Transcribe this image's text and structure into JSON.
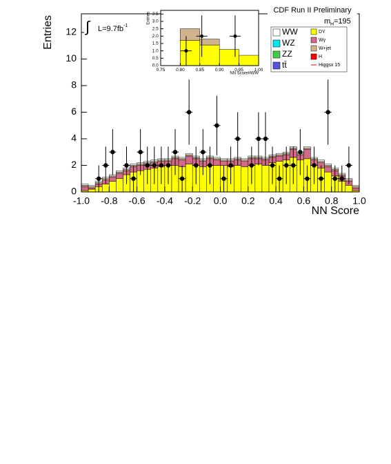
{
  "chart_data": [
    {
      "type": "histogram",
      "title": "CDF Run II Preliminary",
      "xlabel": "NN Score",
      "ylabel": "Entries",
      "integral": "∫",
      "luminosity": "L=9.7fb",
      "luminosity_sup": "-1",
      "mass": "m",
      "mass_sub": "H",
      "mass_value": "=195",
      "bins": [
        -1,
        -0.95,
        -0.9,
        -0.85,
        -0.8,
        -0.75,
        -0.7,
        -0.65,
        -0.6,
        -0.55,
        -0.5,
        -0.45,
        -0.4,
        -0.35,
        -0.3,
        -0.25,
        -0.2,
        -0.15,
        -0.1,
        -0.05,
        0,
        0.05,
        0.1,
        0.15,
        0.2,
        0.25,
        0.3,
        0.35,
        0.4,
        0.45,
        0.5,
        0.55,
        0.6,
        0.65,
        0.7,
        0.75,
        0.8,
        0.85,
        0.9,
        0.95,
        1
      ],
      "xlim": [
        -1,
        1
      ],
      "ylim": [
        0,
        13.4
      ],
      "xticks": [
        {
          "value": -1,
          "label": "-1.0"
        },
        -0.8,
        -0.6,
        -0.4,
        -0.2,
        {
          "value": 0,
          "label": "0.0"
        },
        0.2,
        0.4,
        0.6,
        0.8,
        {
          "value": 1,
          "label": "1.0"
        }
      ],
      "yticks": [
        0,
        2,
        4,
        6,
        8,
        10,
        12
      ],
      "series": [
        {
          "name": "WW",
          "color": "#ffffff",
          "values": [
            0.1,
            0.1,
            0.1,
            0.1,
            0.1,
            0.1,
            0.1,
            0.1,
            0.1,
            0.1,
            0.1,
            0.1,
            0.1,
            0.1,
            0.1,
            0.1,
            0.1,
            0.1,
            0.1,
            0.1,
            0.1,
            0.1,
            0.1,
            0.1,
            0.1,
            0.1,
            0.1,
            0.1,
            0.1,
            0.1,
            0.1,
            0.1,
            0.1,
            0.1,
            0.1,
            0.1,
            0.1,
            0.1,
            0.1,
            0.1
          ]
        },
        {
          "name": "WZ",
          "color": "#00e5ee",
          "values": [
            0,
            0,
            0,
            0,
            0,
            0,
            0,
            0,
            0,
            0,
            0,
            0,
            0,
            0,
            0,
            0,
            0,
            0,
            0,
            0,
            0,
            0,
            0,
            0,
            0,
            0,
            0,
            0,
            0,
            0,
            0,
            0,
            0,
            0,
            0,
            0,
            0,
            0,
            0,
            0
          ]
        },
        {
          "name": "ZZ",
          "color": "#44cc44",
          "values": [
            0,
            0,
            0,
            0,
            0,
            0,
            0,
            0,
            0,
            0,
            0,
            0,
            0,
            0,
            0,
            0,
            0,
            0,
            0,
            0,
            0,
            0,
            0,
            0,
            0,
            0,
            0,
            0,
            0,
            0,
            0,
            0,
            0,
            0,
            0,
            0,
            0,
            0,
            0,
            0
          ]
        },
        {
          "name": "tt̄",
          "color": "#5555dd",
          "values": [
            0,
            0,
            0,
            0,
            0,
            0,
            0,
            0,
            0,
            0,
            0,
            0,
            0,
            0,
            0,
            0,
            0,
            0,
            0,
            0,
            0,
            0,
            0,
            0,
            0,
            0,
            0,
            0,
            0,
            0,
            0,
            0,
            0,
            0,
            0,
            0,
            0,
            0,
            0,
            0
          ]
        },
        {
          "name": "DY",
          "color": "#ffff00",
          "values": [
            0.1,
            0.2,
            0.4,
            0.6,
            0.8,
            1.0,
            1.3,
            1.5,
            1.6,
            1.7,
            1.8,
            1.9,
            2.0,
            2.0,
            1.9,
            2.1,
            2.0,
            1.9,
            2.0,
            2.0,
            2.0,
            1.9,
            2.0,
            1.9,
            2.0,
            2.1,
            2.0,
            2.2,
            2.3,
            2.4,
            2.6,
            2.4,
            2.5,
            2.0,
            1.8,
            1.5,
            1.2,
            0.8,
            0.5,
            0.1
          ]
        },
        {
          "name": "Wγ",
          "color": "#d46a8a",
          "values": [
            0.3,
            0.1,
            0.2,
            0.3,
            0.3,
            0.4,
            0.3,
            0.4,
            0.4,
            0.4,
            0.4,
            0.4,
            0.3,
            0.5,
            0.5,
            0.6,
            0.5,
            0.4,
            0.5,
            0.4,
            0.3,
            0.4,
            0.4,
            0.4,
            0.5,
            0.4,
            0.4,
            0.4,
            0.4,
            0.4,
            0.6,
            0.4,
            0.7,
            0.4,
            0.4,
            0.4,
            0.4,
            0.4,
            0.3,
            0.2
          ]
        },
        {
          "name": "W+jet",
          "color": "#d2b48c",
          "values": [
            0.1,
            0.1,
            0.1,
            0.1,
            0.1,
            0.1,
            0.1,
            0.1,
            0.1,
            0.1,
            0.1,
            0.1,
            0.1,
            0.1,
            0.1,
            0.1,
            0.1,
            0.1,
            0.1,
            0.1,
            0.1,
            0.1,
            0.1,
            0.1,
            0.1,
            0.1,
            0.1,
            0.1,
            0.1,
            0.1,
            0.1,
            0.1,
            0.1,
            0.1,
            0.1,
            0.1,
            0.1,
            0.1,
            0.1,
            0.1
          ]
        },
        {
          "name": "H",
          "color": "#ff0000",
          "values": [
            0,
            0,
            0,
            0,
            0,
            0,
            0,
            0,
            0,
            0,
            0,
            0,
            0,
            0,
            0,
            0,
            0,
            0,
            0,
            0,
            0,
            0,
            0,
            0,
            0,
            0,
            0,
            0,
            0,
            0,
            0,
            0,
            0,
            0,
            0,
            0,
            0,
            0,
            0,
            0
          ]
        },
        {
          "name": "Higgsx 15",
          "color": "#ff0000",
          "line": true,
          "values": [
            0,
            0,
            0,
            0,
            0,
            0,
            0,
            0,
            0,
            0,
            0,
            0,
            0,
            0,
            0,
            0,
            0,
            0,
            0,
            0,
            0,
            0,
            0,
            0,
            0,
            0,
            0,
            0,
            0,
            0,
            0,
            0,
            0,
            0,
            0,
            0,
            0,
            0,
            0,
            0
          ]
        }
      ],
      "data": {
        "values": [
          null,
          null,
          1,
          2,
          3,
          null,
          2,
          1,
          3,
          2,
          2,
          2,
          2,
          3,
          1,
          6,
          2,
          3,
          2,
          5,
          1,
          2,
          4,
          null,
          2,
          4,
          4,
          2,
          1,
          2,
          2,
          3,
          1,
          2,
          1,
          6,
          1,
          1,
          2,
          null
        ],
        "errors": [
          null,
          null,
          1,
          1.41,
          1.73,
          null,
          1.41,
          1,
          1.73,
          1.41,
          1.41,
          1.41,
          1.41,
          1.73,
          1,
          2.45,
          1.41,
          1.73,
          1.41,
          2.24,
          1,
          1.41,
          2,
          null,
          1.41,
          2,
          2,
          1.41,
          1,
          1.41,
          1.41,
          1.73,
          1,
          1.41,
          1,
          2.45,
          1,
          1,
          1.41,
          null
        ]
      }
    },
    {
      "type": "histogram",
      "xlabel": "NN ScoreHWW",
      "ylabel": "Entries",
      "bins": [
        0.75,
        0.8,
        0.85,
        0.9,
        0.95,
        1.0
      ],
      "xlim": [
        0.75,
        1.0
      ],
      "ylim": [
        0,
        3.75
      ],
      "xticks": [
        0.75,
        {
          "value": 0.8,
          "label": "0.80"
        },
        0.85,
        {
          "value": 0.9,
          "label": "0.90"
        },
        0.95,
        {
          "value": 1,
          "label": "1.00"
        }
      ],
      "yticks": [
        {
          "value": 0,
          "label": "0.0"
        },
        0.5,
        {
          "value": 1,
          "label": "1.0"
        },
        1.5,
        {
          "value": 2,
          "label": "2.0"
        },
        2.5,
        {
          "value": 3,
          "label": "3.0"
        },
        3.5
      ],
      "series": [
        {
          "color": "#ffff00",
          "values": [
            0,
            1.7,
            1.4,
            1.1,
            0.7
          ]
        },
        {
          "color": "#d2b48c",
          "values": [
            0,
            0.8,
            0.4,
            0,
            0
          ]
        }
      ],
      "data": {
        "x": [
          0.815,
          0.855,
          0.94
        ],
        "values": [
          1,
          2,
          2
        ],
        "errors": [
          1,
          1.41,
          1.41
        ]
      }
    }
  ]
}
